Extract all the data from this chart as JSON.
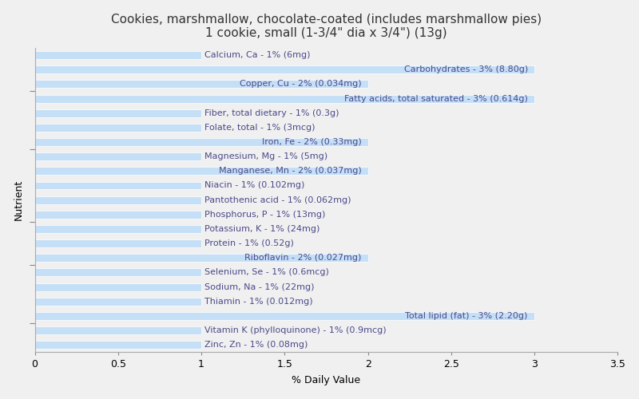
{
  "title": "Cookies, marshmallow, chocolate-coated (includes marshmallow pies)\n1 cookie, small (1-3/4\" dia x 3/4\") (13g)",
  "xlabel": "% Daily Value",
  "ylabel": "Nutrient",
  "nutrients": [
    {
      "label": "Calcium, Ca - 1% (6mg)",
      "value": 1,
      "align": "left"
    },
    {
      "label": "Carbohydrates - 3% (8.80g)",
      "value": 3,
      "align": "right"
    },
    {
      "label": "Copper, Cu - 2% (0.034mg)",
      "value": 2,
      "align": "right"
    },
    {
      "label": "Fatty acids, total saturated - 3% (0.614g)",
      "value": 3,
      "align": "right"
    },
    {
      "label": "Fiber, total dietary - 1% (0.3g)",
      "value": 1,
      "align": "left"
    },
    {
      "label": "Folate, total - 1% (3mcg)",
      "value": 1,
      "align": "left"
    },
    {
      "label": "Iron, Fe - 2% (0.33mg)",
      "value": 2,
      "align": "right"
    },
    {
      "label": "Magnesium, Mg - 1% (5mg)",
      "value": 1,
      "align": "left"
    },
    {
      "label": "Manganese, Mn - 2% (0.037mg)",
      "value": 2,
      "align": "right"
    },
    {
      "label": "Niacin - 1% (0.102mg)",
      "value": 1,
      "align": "left"
    },
    {
      "label": "Pantothenic acid - 1% (0.062mg)",
      "value": 1,
      "align": "left"
    },
    {
      "label": "Phosphorus, P - 1% (13mg)",
      "value": 1,
      "align": "left"
    },
    {
      "label": "Potassium, K - 1% (24mg)",
      "value": 1,
      "align": "left"
    },
    {
      "label": "Protein - 1% (0.52g)",
      "value": 1,
      "align": "left"
    },
    {
      "label": "Riboflavin - 2% (0.027mg)",
      "value": 2,
      "align": "right"
    },
    {
      "label": "Selenium, Se - 1% (0.6mcg)",
      "value": 1,
      "align": "left"
    },
    {
      "label": "Sodium, Na - 1% (22mg)",
      "value": 1,
      "align": "left"
    },
    {
      "label": "Thiamin - 1% (0.012mg)",
      "value": 1,
      "align": "left"
    },
    {
      "label": "Total lipid (fat) - 3% (2.20g)",
      "value": 3,
      "align": "right"
    },
    {
      "label": "Vitamin K (phylloquinone) - 1% (0.9mcg)",
      "value": 1,
      "align": "left"
    },
    {
      "label": "Zinc, Zn - 1% (0.08mg)",
      "value": 1,
      "align": "left"
    }
  ],
  "bar_color": "#c5dff7",
  "text_color": "#4a4a8a",
  "background_color": "#f0f0f0",
  "plot_background": "#f0f0f0",
  "xlim": [
    0,
    3.5
  ],
  "xticks": [
    0,
    0.5,
    1,
    1.5,
    2,
    2.5,
    3,
    3.5
  ],
  "title_fontsize": 11,
  "label_fontsize": 8,
  "axis_fontsize": 9
}
